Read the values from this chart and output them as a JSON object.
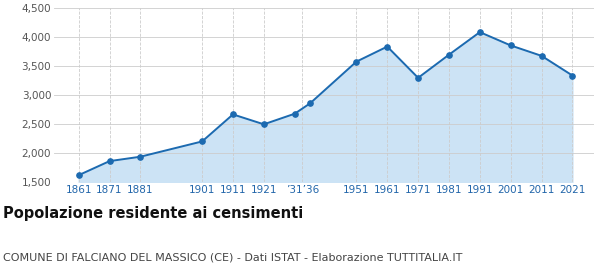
{
  "years": [
    1861,
    1871,
    1881,
    1901,
    1911,
    1921,
    1931,
    1936,
    1951,
    1961,
    1971,
    1981,
    1991,
    2001,
    2011,
    2021
  ],
  "population": [
    1618,
    1861,
    1937,
    2201,
    2668,
    2497,
    2680,
    2860,
    3580,
    3840,
    3300,
    3700,
    4090,
    3860,
    3680,
    3340
  ],
  "xtick_positions": [
    1861,
    1871,
    1881,
    1901,
    1911,
    1921,
    1933.5,
    1951,
    1961,
    1971,
    1981,
    1991,
    2001,
    2011,
    2021
  ],
  "xtick_labels": [
    "1861",
    "1871",
    "1881",
    "1901",
    "1911",
    "1921",
    "’31’36",
    "1951",
    "1961",
    "1971",
    "1981",
    "1991",
    "2001",
    "2011",
    "2021"
  ],
  "line_color": "#1c6ab0",
  "fill_color": "#cce3f5",
  "marker_color": "#1c6ab0",
  "background_color": "#ffffff",
  "grid_color": "#cccccc",
  "ylim": [
    1500,
    4500
  ],
  "yticks": [
    1500,
    2000,
    2500,
    3000,
    3500,
    4000,
    4500
  ],
  "xlim_left": 1853,
  "xlim_right": 2028,
  "title": "Popolazione residente ai censimenti",
  "subtitle": "COMUNE DI FALCIANO DEL MASSICO (CE) - Dati ISTAT - Elaborazione TUTTITALIA.IT",
  "title_fontsize": 10.5,
  "subtitle_fontsize": 8,
  "tick_label_color": "#2266aa",
  "ytick_label_color": "#555555",
  "ytick_fontsize": 7.5,
  "xtick_fontsize": 7.5
}
